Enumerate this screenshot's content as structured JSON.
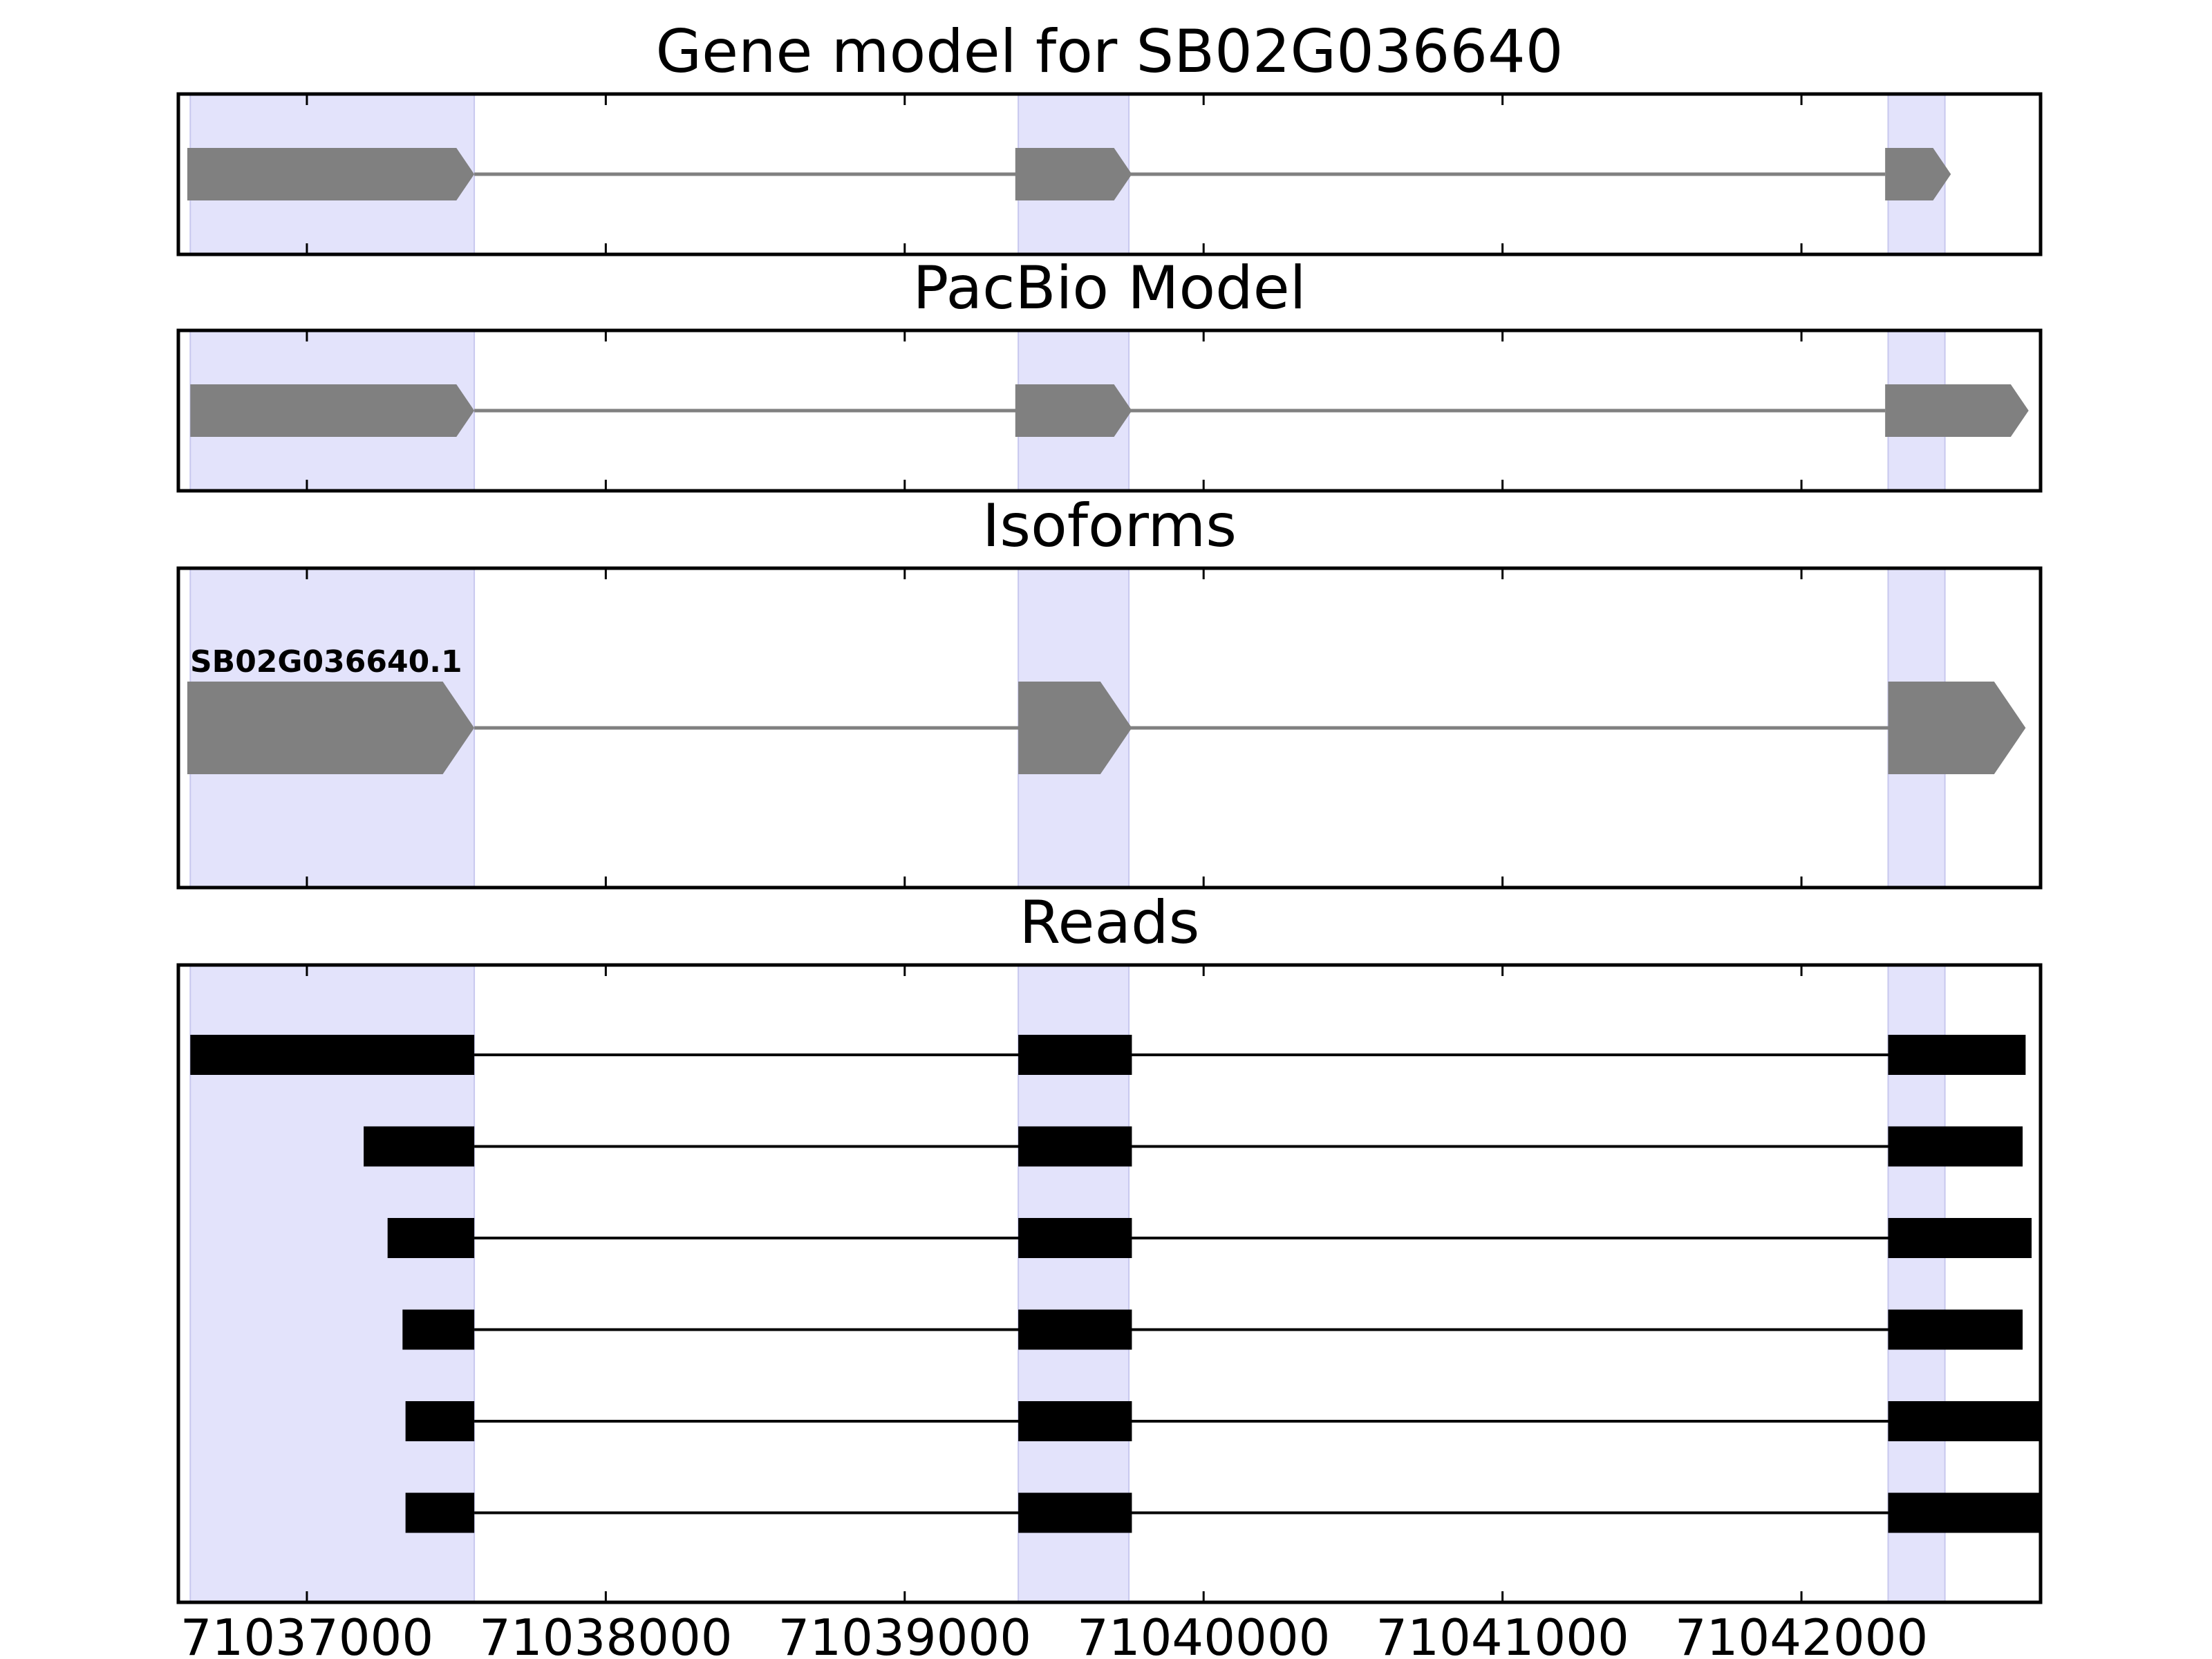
{
  "chart_data": {
    "type": "gene_structure",
    "xlim": [
      71036570,
      71042800
    ],
    "x_ticks": [
      71037000,
      71038000,
      71039000,
      71040000,
      71041000,
      71042000
    ],
    "x_tick_labels": [
      "71037000",
      "71038000",
      "71039000",
      "71040000",
      "71041000",
      "71042000"
    ],
    "highlight_color": "#e3e3fb",
    "highlight_regions": [
      [
        71036610,
        71037560
      ],
      [
        71039380,
        71039750
      ],
      [
        71042290,
        71042480
      ]
    ],
    "panels": [
      {
        "title": "Gene model for SB02G036640",
        "feature_color": "#808080",
        "tracks": [
          {
            "label": "",
            "exons": [
              [
                71036600,
                71037560
              ],
              [
                71039370,
                71039760
              ],
              [
                71042280,
                71042500
              ]
            ]
          }
        ]
      },
      {
        "title": "PacBio Model",
        "feature_color": "#808080",
        "tracks": [
          {
            "label": "",
            "exons": [
              [
                71036610,
                71037560
              ],
              [
                71039370,
                71039760
              ],
              [
                71042280,
                71042760
              ]
            ]
          }
        ]
      },
      {
        "title": "Isoforms",
        "feature_color": "#808080",
        "tracks": [
          {
            "label": "SB02G036640.1",
            "exons": [
              [
                71036600,
                71037560
              ],
              [
                71039380,
                71039760
              ],
              [
                71042290,
                71042750
              ]
            ]
          }
        ]
      },
      {
        "title": "Reads",
        "feature_color": "#000000",
        "tracks": [
          {
            "label": "",
            "exons": [
              [
                71036610,
                71037560
              ],
              [
                71039380,
                71039760
              ],
              [
                71042290,
                71042750
              ]
            ]
          },
          {
            "label": "",
            "exons": [
              [
                71037190,
                71037560
              ],
              [
                71039380,
                71039760
              ],
              [
                71042290,
                71042740
              ]
            ]
          },
          {
            "label": "",
            "exons": [
              [
                71037270,
                71037560
              ],
              [
                71039380,
                71039760
              ],
              [
                71042290,
                71042770
              ]
            ]
          },
          {
            "label": "",
            "exons": [
              [
                71037320,
                71037560
              ],
              [
                71039380,
                71039760
              ],
              [
                71042290,
                71042740
              ]
            ]
          },
          {
            "label": "",
            "exons": [
              [
                71037330,
                71037560
              ],
              [
                71039380,
                71039760
              ],
              [
                71042290,
                71042800
              ]
            ]
          },
          {
            "label": "",
            "exons": [
              [
                71037330,
                71037560
              ],
              [
                71039380,
                71039760
              ],
              [
                71042290,
                71042800
              ]
            ]
          }
        ]
      }
    ]
  }
}
